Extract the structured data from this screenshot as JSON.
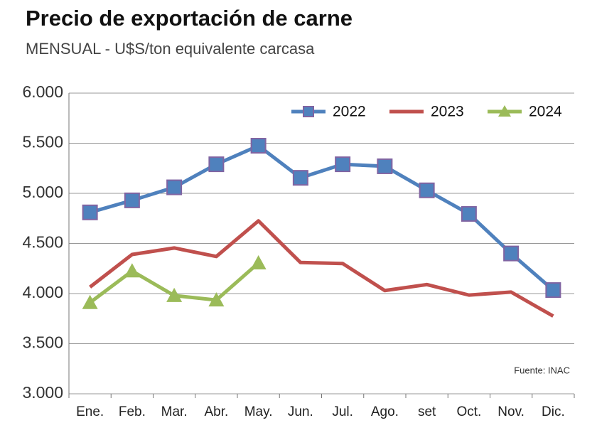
{
  "chart_data": {
    "type": "line",
    "title": "Precio de exportación de carne",
    "subtitle": "MENSUAL - U$S/ton equivalente carcasa",
    "annotation": "Fuente: INAC",
    "categories": [
      "Ene.",
      "Feb.",
      "Mar.",
      "Abr.",
      "May.",
      "Jun.",
      "Jul.",
      "Ago.",
      "set",
      "Oct.",
      "Nov.",
      "Dic."
    ],
    "series": [
      {
        "name": "2022",
        "color": "#4f81bd",
        "marker": "square",
        "values": [
          4810,
          4930,
          5060,
          5290,
          5475,
          5155,
          5290,
          5270,
          5030,
          4795,
          4400,
          4035
        ]
      },
      {
        "name": "2023",
        "color": "#c0504d",
        "marker": "none",
        "values": [
          4065,
          4390,
          4455,
          4370,
          4725,
          4310,
          4300,
          4030,
          4090,
          3985,
          4015,
          3775
        ]
      },
      {
        "name": "2024",
        "color": "#9bbb59",
        "marker": "triangle",
        "values": [
          3910,
          4225,
          3980,
          3935,
          4305,
          null,
          null,
          null,
          null,
          null,
          null,
          null
        ]
      }
    ],
    "ylim": [
      3000,
      6000
    ],
    "yticks": [
      {
        "value": 3000,
        "label": "3.000"
      },
      {
        "value": 3500,
        "label": "3.500"
      },
      {
        "value": 4000,
        "label": "4.000"
      },
      {
        "value": 4500,
        "label": "4.500"
      },
      {
        "value": 5000,
        "label": "5.000"
      },
      {
        "value": 5500,
        "label": "5.500"
      },
      {
        "value": 6000,
        "label": "6.000"
      }
    ],
    "grid": true,
    "legend": "top-right"
  }
}
